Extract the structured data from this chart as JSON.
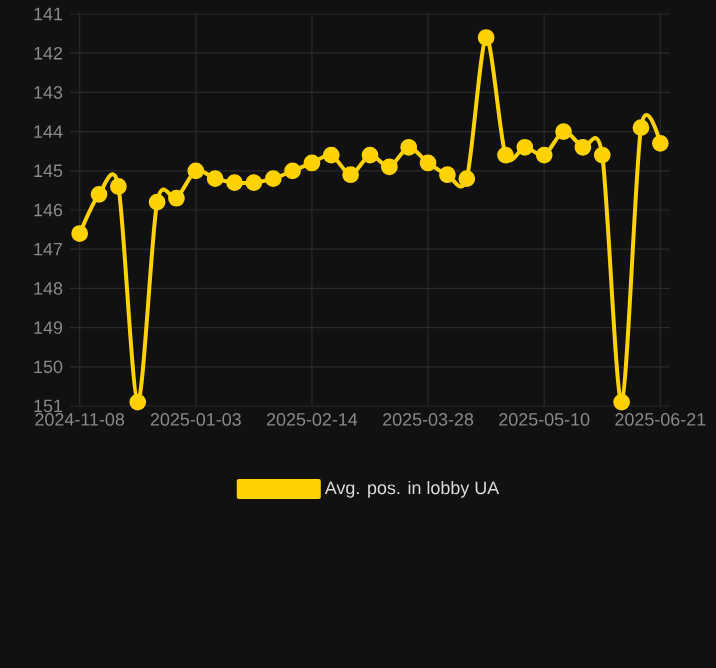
{
  "chart_data": {
    "type": "line",
    "categories": [
      "2024-11-08",
      null,
      null,
      null,
      null,
      null,
      "2025-01-03",
      null,
      null,
      null,
      null,
      null,
      "2025-02-14",
      null,
      null,
      null,
      null,
      null,
      "2025-03-28",
      null,
      null,
      null,
      null,
      null,
      "2025-05-10",
      null,
      null,
      null,
      null,
      null,
      "2025-06-21"
    ],
    "series": [
      {
        "name": "Avg. pos. in lobby UA",
        "color": "#ffd200",
        "values": [
          146.6,
          145.6,
          145.4,
          150.9,
          145.8,
          145.7,
          145.0,
          145.2,
          145.3,
          145.3,
          145.2,
          145.0,
          144.8,
          144.6,
          145.1,
          144.6,
          144.9,
          144.4,
          144.8,
          145.1,
          145.2,
          141.6,
          144.6,
          144.4,
          144.6,
          144.0,
          144.4,
          144.6,
          150.9,
          143.9,
          144.3
        ]
      }
    ],
    "ylim": [
      151,
      141
    ],
    "yticks": [
      141,
      142,
      143,
      144,
      145,
      146,
      147,
      148,
      149,
      150,
      151
    ],
    "grid": true,
    "legend": "bottom",
    "marker": "circle"
  }
}
